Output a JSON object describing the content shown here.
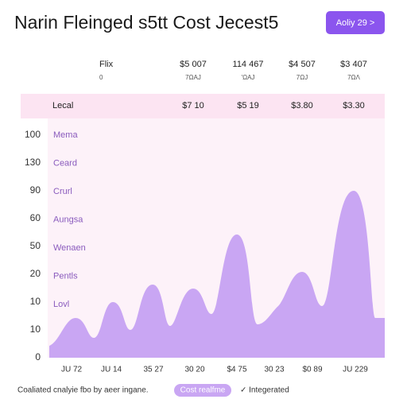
{
  "header": {
    "title": "Narin Fleinged s5tt Cost Jecest5",
    "button": "Aoliy 29 >"
  },
  "columns": [
    {
      "label": "Flix",
      "sub": "0"
    },
    {
      "label": "$5 007",
      "sub": "7ΩAJ"
    },
    {
      "label": "114 467",
      "sub": "'ΩAJ"
    },
    {
      "label": "$4 507",
      "sub": "7ΩJ"
    },
    {
      "label": "$3 407",
      "sub": "7ΩΛ"
    }
  ],
  "summary": {
    "label": "Lecal",
    "values": [
      "$7 10",
      "$5 19",
      "$3.80",
      "$3.30"
    ]
  },
  "row_labels": [
    "Mema",
    "Ceard",
    "Crurl",
    "Aungsa",
    "Wenaen",
    "Pentls",
    "Lovl"
  ],
  "y_labels": [
    "100",
    "130",
    "90",
    "60",
    "50",
    "20",
    "10",
    "10",
    "0"
  ],
  "x_labels": [
    "JU 72",
    "JU 14",
    "35 27",
    "30 20",
    "$4 75",
    "30 23",
    "$0 89",
    "JU 229"
  ],
  "footer": {
    "note": "Coaliated cnalyie fbo by aeer ingane.",
    "pill": "Cost realfme",
    "check": "✓ Integerated"
  }
}
